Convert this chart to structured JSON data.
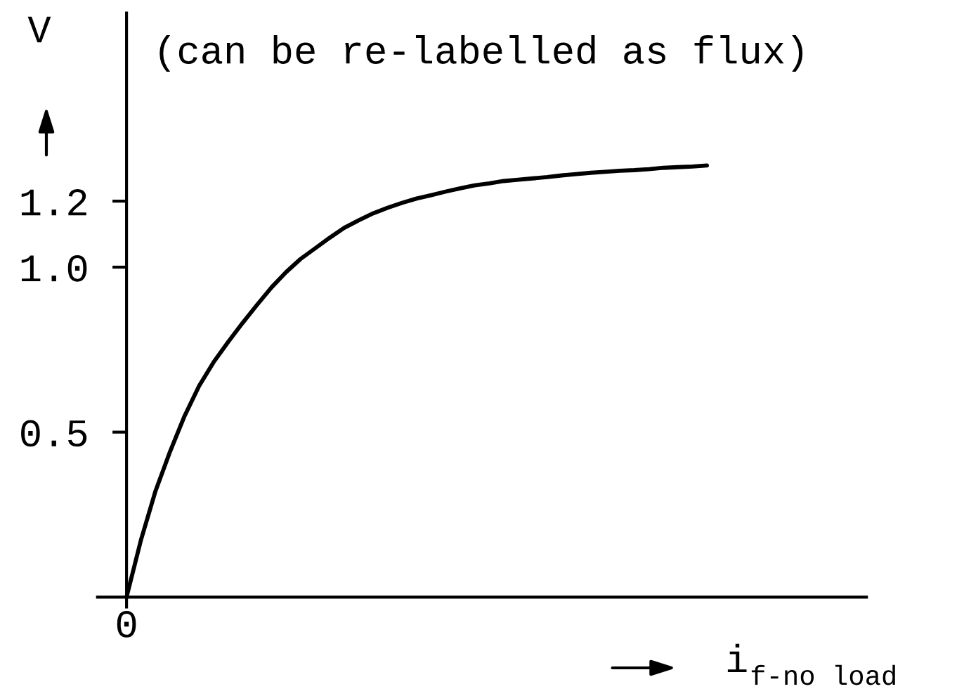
{
  "chart_data": {
    "type": "line",
    "xlabel": "i$_{f-no load}$",
    "ylabel": "V",
    "annotations": [
      "(can be re-labelled as flux)"
    ],
    "categories": [
      "0",
      null,
      null,
      null,
      null,
      null,
      null,
      null,
      null,
      null,
      null,
      null,
      null,
      null,
      null,
      null,
      null,
      null,
      null,
      null,
      null,
      null,
      null,
      null,
      null,
      null,
      null,
      null,
      null,
      null,
      null,
      null,
      null,
      null,
      null,
      null,
      null,
      null,
      null,
      null,
      null,
      null,
      null,
      null,
      null,
      null,
      null,
      null,
      null,
      null,
      null
    ],
    "series": [
      {
        "color": "#000000",
        "values": [
          0,
          0.174,
          0.322,
          0.441,
          0.549,
          0.64,
          0.712,
          0.773,
          0.831,
          0.886,
          0.939,
          0.985,
          1.025,
          1.057,
          1.089,
          1.119,
          1.142,
          1.163,
          1.18,
          1.195,
          1.208,
          1.218,
          1.229,
          1.239,
          1.248,
          1.254,
          1.261,
          1.265,
          1.269,
          1.273,
          1.278,
          1.282,
          1.286,
          1.289,
          1.292,
          1.294,
          1.297,
          1.301,
          1.303,
          1.305,
          1.308,
          null,
          null,
          null,
          null,
          null,
          null,
          null,
          null,
          null,
          null
        ]
      }
    ],
    "ylim": [
      -0.03,
      1.77
    ],
    "yticks": [
      {
        "value": 0.5,
        "label": "0.5"
      },
      {
        "value": 1.0,
        "label": "1.0"
      },
      {
        "value": 1.2,
        "label": "1.2"
      }
    ],
    "line_style": "solid"
  }
}
